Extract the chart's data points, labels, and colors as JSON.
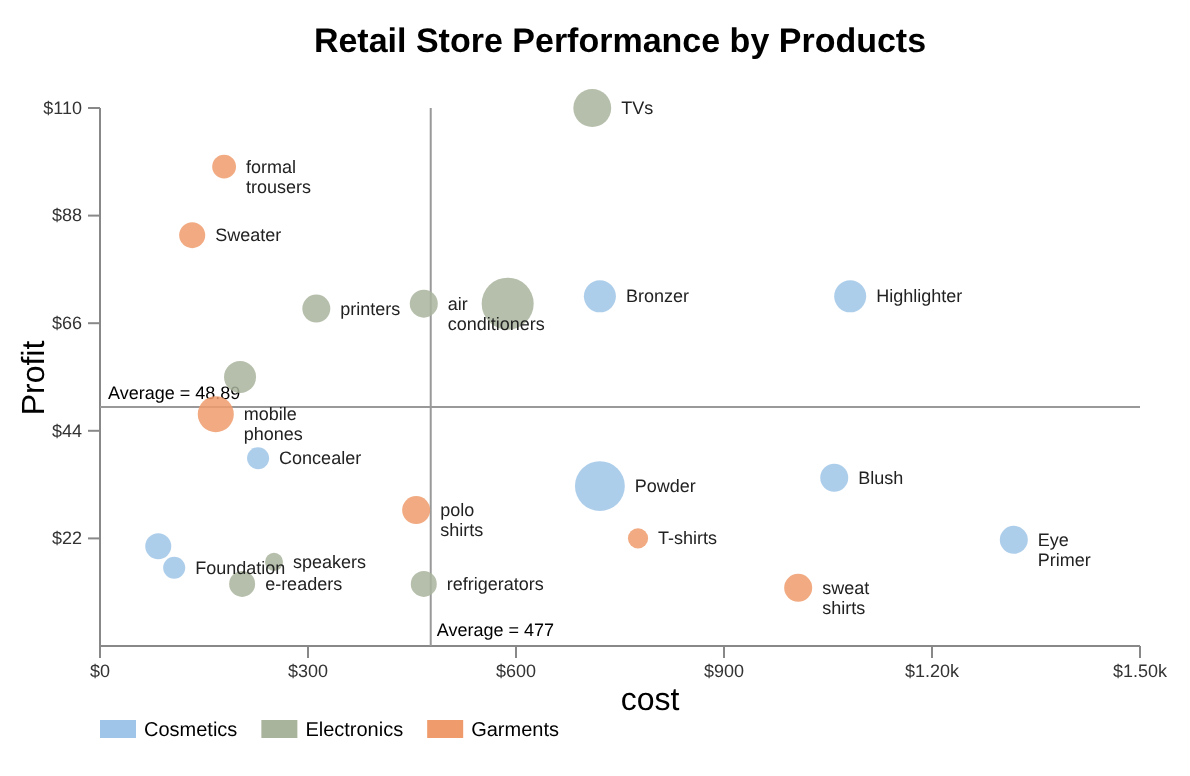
{
  "chart_data": {
    "type": "bubble",
    "title": "Retail Store Performance by Products",
    "xlabel": "cost",
    "ylabel": "Profit",
    "xlim": [
      0,
      1500
    ],
    "xticks": [
      {
        "value": 0,
        "label": "$0"
      },
      {
        "value": 300,
        "label": "$300"
      },
      {
        "value": 600,
        "label": "$600"
      },
      {
        "value": 900,
        "label": "$900"
      },
      {
        "value": 1200,
        "label": "$1.20k"
      },
      {
        "value": 1500,
        "label": "$1.50k"
      }
    ],
    "ylim": [
      0,
      110
    ],
    "yticks": [
      {
        "value": 22,
        "label": "$22"
      },
      {
        "value": 44,
        "label": "$44"
      },
      {
        "value": 66,
        "label": "$66"
      },
      {
        "value": 88,
        "label": "$88"
      },
      {
        "value": 110,
        "label": "$110"
      }
    ],
    "legend": "bottom left",
    "ref_lines": [
      {
        "axis": "x",
        "value": 477,
        "label": "Average = 477"
      },
      {
        "axis": "y",
        "value": 48.89,
        "label": "Average = 48.89"
      }
    ],
    "series": [
      {
        "name": "Cosmetics",
        "color": "#9fc5e8",
        "x": [
          721,
          1082,
          228,
          84,
          107,
          721,
          1059,
          1318
        ],
        "values": [
          71.5,
          71.5,
          38.4,
          20.4,
          16,
          32.7,
          34.4,
          21.7
        ],
        "sizes": [
          0.38,
          0.38,
          0.18,
          0.25,
          0.18,
          0.92,
          0.29,
          0.29
        ],
        "value_labels": [
          "Bronzer",
          "Highlighter",
          "Concealer",
          null,
          "Foundation",
          "Powder",
          "Blush",
          "Eye Primer"
        ]
      },
      {
        "name": "Electronics",
        "color": "#a9b49c",
        "x": [
          710,
          312,
          467,
          588,
          202,
          251,
          205,
          467
        ],
        "values": [
          110,
          69,
          70,
          70,
          55,
          17.2,
          12.7,
          12.7
        ],
        "sizes": [
          0.53,
          0.29,
          0.29,
          1,
          0.38,
          0.12,
          0.25,
          0.25
        ],
        "value_labels": [
          "TVs",
          "printers",
          "air conditioners",
          null,
          null,
          "speakers",
          "e-readers",
          "refrigerators"
        ]
      },
      {
        "name": "Garments",
        "color": "#ef9b6b",
        "x": [
          179,
          133,
          167,
          456,
          776,
          1007
        ],
        "values": [
          98,
          84,
          47.4,
          27.8,
          22,
          11.9
        ],
        "sizes": [
          0.21,
          0.25,
          0.48,
          0.29,
          0.15,
          0.29
        ],
        "value_labels": [
          "formal trousers",
          "Sweater",
          "mobile phones",
          "polo shirts",
          "T-shirts",
          "sweat shirts"
        ]
      }
    ]
  }
}
